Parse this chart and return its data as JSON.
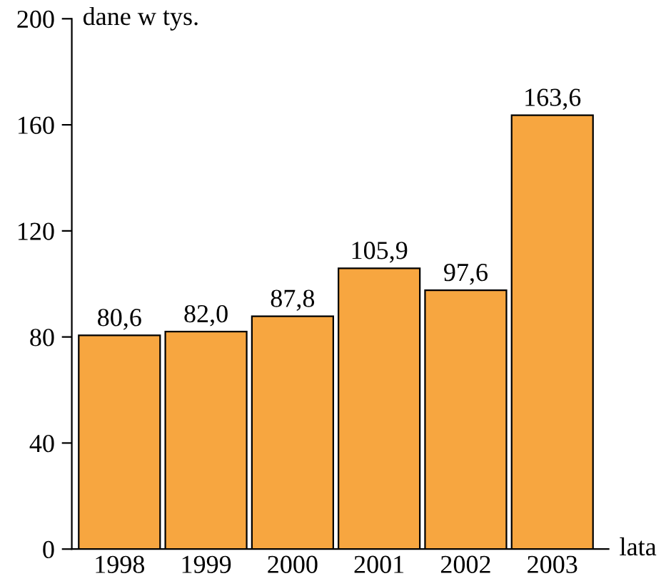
{
  "chart_data": {
    "type": "bar",
    "ylabel": "dane w tys.",
    "xlabel": "lata",
    "categories": [
      "1998",
      "1999",
      "2000",
      "2001",
      "2002",
      "2003"
    ],
    "values": [
      80.6,
      82.0,
      87.8,
      105.9,
      97.6,
      163.6
    ],
    "value_labels": [
      "80,6",
      "82,0",
      "87,8",
      "105,9",
      "97,6",
      "163,6"
    ],
    "color": "#f7a640",
    "ylim": [
      0,
      200
    ],
    "yticks": [
      0,
      40,
      80,
      120,
      160,
      200
    ],
    "grid": false,
    "legend": false
  }
}
